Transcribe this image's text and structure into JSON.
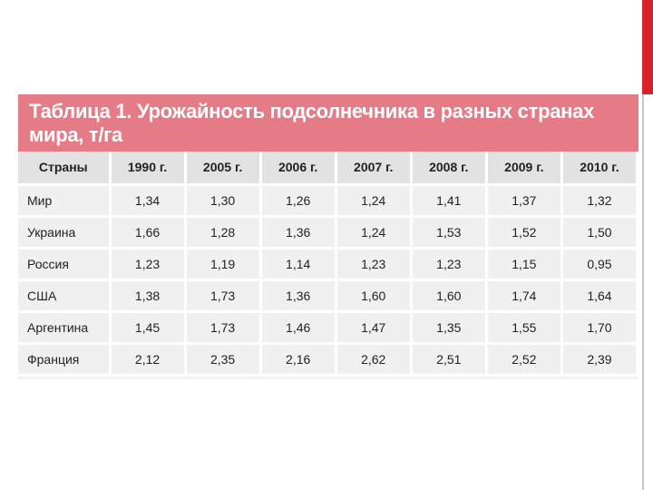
{
  "title": "Таблица 1. Урожайность подсолнечника в разных странах мира, т/га",
  "columns": [
    "Страны",
    "1990 г.",
    "2005 г.",
    "2006 г.",
    "2007 г.",
    "2008 г.",
    "2009 г.",
    "2010 г."
  ],
  "rows": [
    {
      "country": "Мир",
      "values": [
        "1,34",
        "1,30",
        "1,26",
        "1,24",
        "1,41",
        "1,37",
        "1,32"
      ]
    },
    {
      "country": "Украина",
      "values": [
        "1,66",
        "1,28",
        "1,36",
        "1,24",
        "1,53",
        "1,52",
        "1,50"
      ]
    },
    {
      "country": "Россия",
      "values": [
        "1,23",
        "1,19",
        "1,14",
        "1,23",
        "1,23",
        "1,15",
        "0,95"
      ]
    },
    {
      "country": "США",
      "values": [
        "1,38",
        "1,73",
        "1,36",
        "1,60",
        "1,60",
        "1,74",
        "1,64"
      ]
    },
    {
      "country": "Аргентина",
      "values": [
        "1,45",
        "1,73",
        "1,46",
        "1,47",
        "1,35",
        "1,55",
        "1,70"
      ]
    },
    {
      "country": "Франция",
      "values": [
        "2,12",
        "2,35",
        "2,16",
        "2,62",
        "2,51",
        "2,52",
        "2,39"
      ]
    }
  ],
  "colors": {
    "title_band": "#e57b86",
    "accent_bar": "#d8202a"
  }
}
